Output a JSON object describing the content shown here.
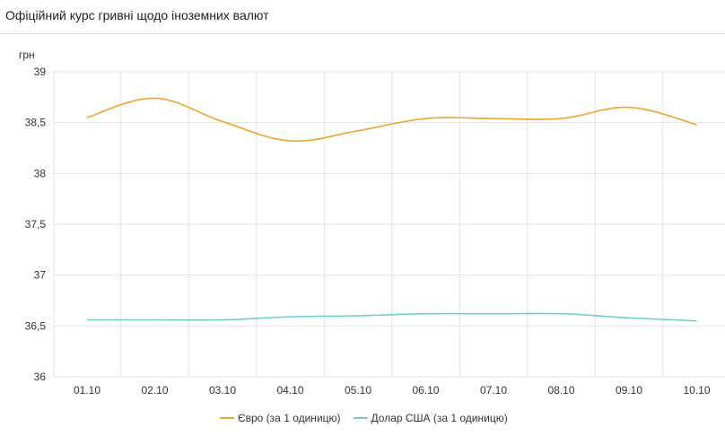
{
  "header": {
    "title": "Офіційний курс гривні щодо іноземних валют"
  },
  "chart_data": {
    "type": "line",
    "title": "",
    "ylabel": "грн",
    "xlabel": "",
    "ylim": [
      36,
      39
    ],
    "yticks": [
      36,
      36.5,
      37,
      37.5,
      38,
      38.5,
      39
    ],
    "ytick_labels": [
      "36",
      "36,5",
      "37",
      "37,5",
      "38",
      "38,5",
      "39"
    ],
    "categories": [
      "01.10",
      "02.10",
      "03.10",
      "04.10",
      "05.10",
      "06.10",
      "07.10",
      "08.10",
      "09.10",
      "10.10"
    ],
    "grid": true,
    "legend_position": "bottom",
    "series": [
      {
        "name": "Євро (за 1 одиницю)",
        "color": "#f0a22e",
        "values": [
          38.55,
          38.74,
          38.51,
          38.32,
          38.42,
          38.54,
          38.54,
          38.54,
          38.65,
          38.48
        ]
      },
      {
        "name": "Долар США (за 1 одиницю)",
        "color": "#6fcfcf",
        "values": [
          36.56,
          36.56,
          36.56,
          36.59,
          36.6,
          36.62,
          36.62,
          36.62,
          36.58,
          36.55
        ]
      }
    ]
  }
}
